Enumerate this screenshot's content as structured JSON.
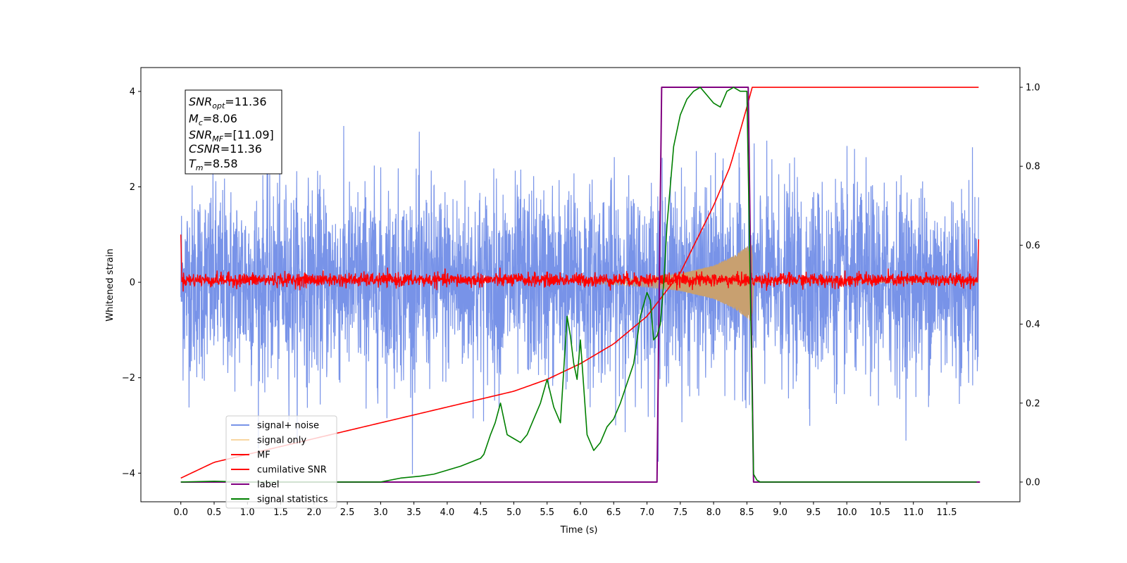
{
  "chart_data": {
    "type": "line",
    "xlabel": "Time (s)",
    "ylabel": "Whitened strain",
    "xlim": [
      -0.6,
      12.6
    ],
    "ylim_left": [
      -4.6,
      4.5
    ],
    "ylim_right": [
      -0.05,
      1.05
    ],
    "x_ticks": [
      "0.0",
      "0.5",
      "1.0",
      "1.5",
      "2.0",
      "2.5",
      "3.0",
      "3.5",
      "4.0",
      "4.5",
      "5.0",
      "5.5",
      "6.0",
      "6.5",
      "7.0",
      "7.5",
      "8.0",
      "8.5",
      "9.0",
      "9.5",
      "10.0",
      "10.5",
      "11.0",
      "11.5"
    ],
    "y_ticks_left": [
      "4",
      "2",
      "0",
      "−2",
      "−4"
    ],
    "y_ticks_right": [
      "1.0",
      "0.8",
      "0.6",
      "0.4",
      "0.2",
      "0.0"
    ],
    "annotation": {
      "snr_opt": {
        "base": "SNR",
        "sub": "opt",
        "value": "=11.36"
      },
      "mc": {
        "base": "M",
        "sub": "c",
        "value": "=8.06"
      },
      "snr_mf": {
        "base": "SNR",
        "sub": "MF",
        "value": "=[11.09]"
      },
      "csnr": {
        "base": "CSNR",
        "sub": "",
        "value": "=11.36"
      },
      "tm": {
        "base": "T",
        "sub": "m",
        "value": "=8.58"
      }
    },
    "legend": [
      {
        "label": "signal+ noise",
        "color": "#7893e8"
      },
      {
        "label": "signal only",
        "color": "#f5c882"
      },
      {
        "label": "MF",
        "color": "#ff0000"
      },
      {
        "label": "cumilative SNR",
        "color": "#ff0000"
      },
      {
        "label": "label",
        "color": "#800080"
      },
      {
        "label": "signal statistics",
        "color": "#008000"
      }
    ],
    "series": [
      {
        "name": "signal+ noise",
        "axis": "left",
        "noise_std": 1.0,
        "noise_range": [
          -4.1,
          4.1
        ]
      },
      {
        "name": "signal only",
        "axis": "left",
        "envelope": {
          "x": [
            6.0,
            6.5,
            7.0,
            7.5,
            8.0,
            8.3,
            8.5,
            8.58
          ],
          "amp": [
            0.02,
            0.05,
            0.1,
            0.18,
            0.35,
            0.55,
            0.75,
            0.85
          ]
        }
      },
      {
        "name": "MF",
        "axis": "left",
        "baseline": 0.05,
        "noise_amp": 0.12
      },
      {
        "name": "cumilative SNR",
        "axis": "right",
        "x": [
          0.0,
          0.5,
          1.0,
          1.5,
          2.0,
          2.5,
          3.0,
          3.5,
          4.0,
          4.5,
          5.0,
          5.5,
          6.0,
          6.5,
          7.0,
          7.5,
          8.0,
          8.25,
          8.5,
          8.58,
          8.59,
          12.0
        ],
        "y": [
          0.01,
          0.05,
          0.07,
          0.09,
          0.11,
          0.13,
          0.15,
          0.17,
          0.19,
          0.21,
          0.23,
          0.26,
          0.3,
          0.35,
          0.42,
          0.53,
          0.7,
          0.8,
          0.95,
          1.0,
          1.0,
          1.0
        ]
      },
      {
        "name": "label",
        "axis": "right",
        "x": [
          0.0,
          7.15,
          7.22,
          8.52,
          8.6,
          12.0
        ],
        "y": [
          0.0,
          0.0,
          1.0,
          1.0,
          0.0,
          0.0
        ]
      },
      {
        "name": "signal statistics",
        "axis": "right",
        "x": [
          0.0,
          0.5,
          1.0,
          2.0,
          3.0,
          3.3,
          3.6,
          3.8,
          4.0,
          4.2,
          4.35,
          4.5,
          4.55,
          4.65,
          4.72,
          4.8,
          4.9,
          5.0,
          5.1,
          5.2,
          5.3,
          5.4,
          5.5,
          5.6,
          5.7,
          5.8,
          5.85,
          5.9,
          5.95,
          6.0,
          6.05,
          6.1,
          6.2,
          6.3,
          6.4,
          6.5,
          6.6,
          6.7,
          6.8,
          6.9,
          7.0,
          7.05,
          7.1,
          7.15,
          7.2,
          7.25,
          7.3,
          7.4,
          7.5,
          7.6,
          7.7,
          7.8,
          7.9,
          8.0,
          8.1,
          8.2,
          8.3,
          8.4,
          8.5,
          8.55,
          8.6,
          8.65,
          8.7,
          9.0,
          10.0,
          11.0,
          11.95
        ],
        "y": [
          0.0,
          0.002,
          0.0,
          0.0,
          0.0,
          0.01,
          0.015,
          0.02,
          0.03,
          0.04,
          0.05,
          0.06,
          0.07,
          0.12,
          0.15,
          0.2,
          0.12,
          0.11,
          0.1,
          0.12,
          0.16,
          0.2,
          0.26,
          0.19,
          0.15,
          0.42,
          0.37,
          0.3,
          0.26,
          0.36,
          0.24,
          0.12,
          0.08,
          0.1,
          0.14,
          0.16,
          0.2,
          0.25,
          0.3,
          0.42,
          0.48,
          0.46,
          0.36,
          0.37,
          0.4,
          0.5,
          0.65,
          0.85,
          0.93,
          0.97,
          0.99,
          1.0,
          0.98,
          0.96,
          0.95,
          0.99,
          1.0,
          0.99,
          0.99,
          0.5,
          0.02,
          0.005,
          0.0,
          0.0,
          0.0,
          0.0,
          0.0
        ]
      }
    ]
  }
}
